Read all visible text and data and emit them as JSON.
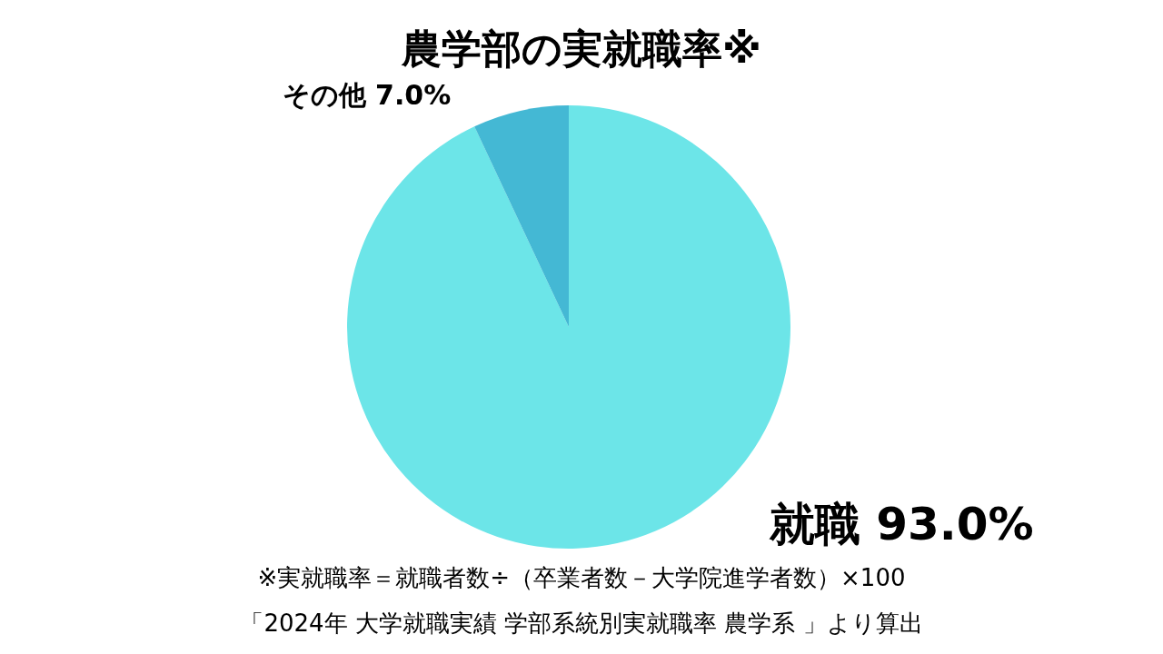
{
  "chart_data": {
    "type": "pie",
    "title": "農学部の実就職率※",
    "categories": [
      "就職",
      "その他"
    ],
    "values": [
      93.0,
      7.0
    ],
    "value_labels": [
      "93.0%",
      "7.0%"
    ],
    "colors": [
      "#6ce5e8",
      "#44b8d4"
    ],
    "legend": false,
    "annotations": [
      "※実就職率＝就職者数÷（卒業者数－大学院進学者数）×100",
      "「2024年 大学就職実績 学部系統別実就職率 農学系 」より算出"
    ]
  }
}
